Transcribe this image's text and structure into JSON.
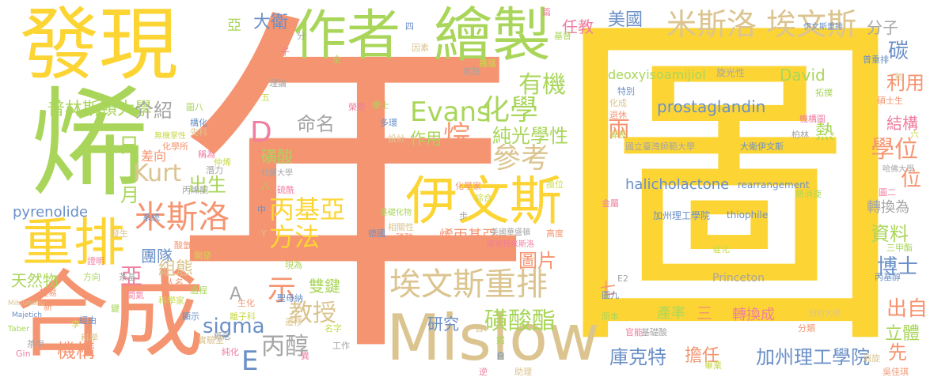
{
  "palette": {
    "yellow": "#fcd535",
    "salmon": "#f59470",
    "green": "#a9d65a",
    "tan": "#dbc48f",
    "gray": "#a5a5a5",
    "pink": "#f07ea0",
    "blue": "#6a8fc7",
    "lime": "#c9d94b"
  },
  "words": {
    "nian": "年",
    "tu": "圖",
    "fa_xian": "發現",
    "zuo_zhe": "作者",
    "hui_zhi": "繪製",
    "xi": "烯",
    "he_cheng": "合成",
    "chong_pai": "重排",
    "mislow": "Mislow",
    "yi_wen_si": "伊文斯",
    "mi_si_luo_ai_wen_si": "米斯洛 埃文斯",
    "you_ji": "有機",
    "hua_xue": "化學",
    "evans": "Evans",
    "ai_wen_si_chong_pai": "埃文斯重排",
    "mi_si_luo": "米斯洛",
    "kurt": "Kurt",
    "D": "D",
    "bing_ji_ya_fang_fa": "丙基亞 方法",
    "jiao_shou": "教授",
    "sigma": "sigma",
    "bing_chun": "丙醇",
    "huang_suan_zhi": "磺酸酯",
    "ku_ke_te": "庫克特",
    "dan_ren": "擔任",
    "jia_zhou": "加州理工學院",
    "pu_lin_si_dun": "普林斯頓大學",
    "xue_wei": "學位",
    "li_yong": "利用",
    "jie_gou": "結構",
    "chun_guang_xue_xing": "純光學性",
    "can_kao": "參考",
    "tu_pian": "圖片",
    "shi": "示",
    "chu_sheng": "出生",
    "zhuan_huan_wei": "轉換為",
    "zi_liao": "資料",
    "bo_shi": "博士",
    "chu_zi": "出自",
    "li_ti": "立體",
    "xian": "先",
    "mei_guo": "美國",
    "ren_jiao": "任教",
    "tan": "碳",
    "fen_zi": "分子",
    "da_wei": "大衛",
    "ya_top": "亞",
    "jie_shao": "介紹",
    "ri": "日",
    "yue": "月",
    "ming_ming": "命名",
    "huang_suan": "磺酸",
    "zuo_yong": "作用",
    "wan": "烷",
    "liang": "兩",
    "re": "熱",
    "wei": "位",
    "tuan_dui": "團隊",
    "zu_tai": "組態",
    "ya": "亞",
    "tian_ran_wu": "天然物",
    "pyrenolide": "pyrenolide",
    "ji_gou": "機構",
    "E": "E",
    "shuang_jian": "雙鍵",
    "yan_jiu": "研究",
    "qi": "七",
    "chan_lv": "產率",
    "san": "三",
    "zhuan_huan_cheng": "轉換成",
    "david": "David",
    "prostaglandin": "prostaglandin",
    "halicholactone": "halicholactone",
    "deoxy": "deoxyisoamijiol",
    "princeton": "Princeton",
    "jia_zhou_small": "加州理工學院",
    "thiophile": "thiophile",
    "rearrangement": "rearrangement",
    "da_wei_yi_wen_si": "大衛伊文斯",
    "guo_li": "國立臺灣師範大學",
    "xi_bing_ji_ya": "烯丙基亞",
    "cha_xiang": "差向",
    "A": "A",
    "xuan_guang_xing": "旋光性",
    "xian_guang": "前",
    "small": [
      "分",
      "子",
      "全",
      "四",
      "因素",
      "逆性",
      "捕獲",
      "氧陰",
      "篇",
      "基督",
      "特別",
      "化成",
      "退休",
      "專長",
      "柏林",
      "機構圖",
      "拓撲",
      "普重排",
      "氧",
      "碩士生",
      "六",
      "哈佛大學",
      "圖二",
      "三甲酯",
      "丙基醇",
      "消旋",
      "吳佳琪",
      "畢業",
      "基礎酸",
      "官能",
      "原本",
      "圖九",
      "紐約大學",
      "分類",
      "催化",
      "E2",
      "金屬",
      "熱消旋",
      "伊文斯重排",
      "助理",
      "高度",
      "換位",
      "美國華盛頓",
      "庫克特米斯洛",
      "基礎化物",
      "德國",
      "相關性",
      "磷酸",
      "名字",
      "工作",
      "異",
      "現為",
      "聖母納",
      "遷移",
      "生化",
      "離子科",
      "概念",
      "純化",
      "過程",
      "顯示",
      "實驗室",
      "人名",
      "科學家",
      "茶基",
      "間氣",
      "鍵",
      "系統",
      "發生",
      "酸氫",
      "開發",
      "丙烯酮",
      "證明",
      "方向",
      "經由",
      "科學",
      "新",
      "李",
      "茶甲",
      "Gin",
      "Taber",
      "Majetich",
      "Mitsunobu",
      "輕易",
      "仲烯",
      "潛力",
      "稱為",
      "圖八",
      "構化",
      "先科",
      "化學所",
      "無機掌性",
      "杜蘭大學",
      "硫酰",
      "八",
      "中",
      "Y",
      "G",
      "五",
      "理論",
      "榮譽",
      "學士",
      "多環",
      "設計",
      "化學家",
      "綜合",
      "步",
      "逆",
      "錯",
      "自",
      "皆",
      "F",
      "+",
      "剛",
      "轉換",
      "日",
      "譜",
      "大"
    ]
  }
}
